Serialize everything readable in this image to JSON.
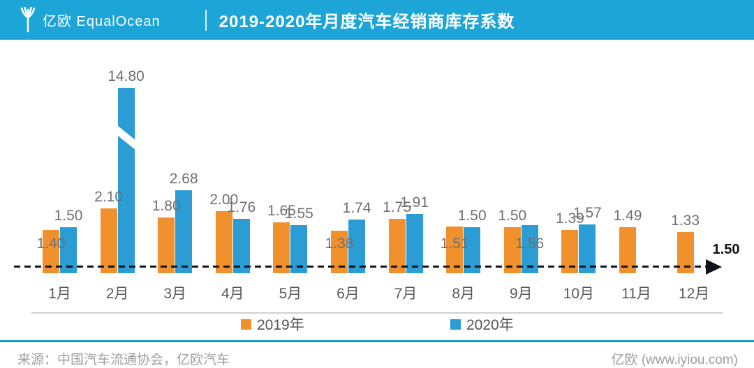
{
  "header": {
    "brand": "亿欧 EqualOcean",
    "title": "2019-2020年月度汽车经销商库存系数"
  },
  "chart_data": {
    "type": "bar",
    "title": "2019-2020年月度汽车经销商库存系数",
    "xlabel": "",
    "ylabel": "",
    "grid": false,
    "legend_position": "bottom",
    "ylim": [
      0,
      3
    ],
    "categories": [
      "1月",
      "2月",
      "3月",
      "4月",
      "5月",
      "6月",
      "7月",
      "8月",
      "9月",
      "10月",
      "11月",
      "12月"
    ],
    "series": [
      {
        "name": "2019年",
        "color": "#F0912D",
        "values": [
          1.4,
          2.1,
          1.8,
          2.0,
          1.65,
          1.38,
          1.75,
          1.51,
          1.5,
          1.39,
          1.49,
          1.33
        ],
        "label_placement": [
          "low",
          "above",
          "above",
          "above",
          "above",
          "low",
          "above",
          "low",
          "above",
          "above",
          "above",
          "above"
        ]
      },
      {
        "name": "2020年",
        "color": "#2C9CD4",
        "values": [
          1.5,
          14.8,
          2.68,
          1.76,
          1.55,
          1.74,
          1.91,
          1.5,
          1.56,
          1.57,
          null,
          null
        ],
        "label_placement": [
          "above",
          "above",
          "above",
          "above",
          "above",
          "above",
          "above",
          "above",
          "low",
          "above",
          null,
          null
        ]
      }
    ],
    "reference_line": {
      "value": 1.5,
      "label": "1.50"
    },
    "axis_break": {
      "series_index": 1,
      "category_index": 1,
      "note": "2月2020年柱形截断"
    }
  },
  "footer": {
    "source": "来源：中国汽车流通协会，亿欧汽车",
    "site": "亿欧 (www.iyiou.com)"
  },
  "colors": {
    "header_bg": "#1EA5D7",
    "bar_2019": "#F0912D",
    "bar_2020": "#2C9CD4",
    "footer_divider": "#1A9BCE",
    "ref_line": "#10141c",
    "value_label": "#6f6f6f",
    "axis_line": "#d0d0d0"
  }
}
